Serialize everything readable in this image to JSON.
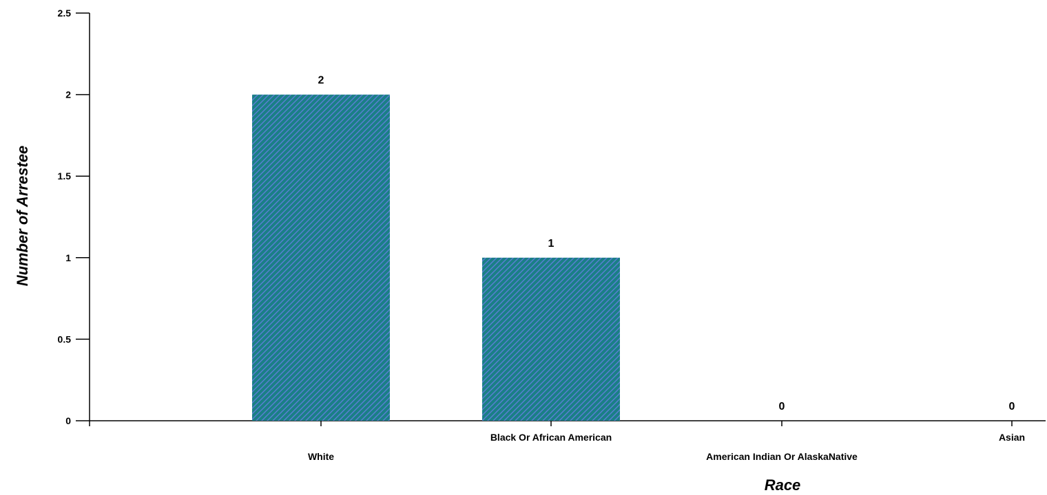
{
  "chart_data": {
    "type": "bar",
    "title": "",
    "xlabel": "Race",
    "ylabel": "Number of Arrestee",
    "categories": [
      "White",
      "Black Or African American",
      "American Indian Or AlaskaNative",
      "Asian"
    ],
    "values": [
      2,
      1,
      0,
      0
    ],
    "value_labels": [
      "2",
      "1",
      "0",
      "0"
    ],
    "ylim": [
      0,
      2.5
    ],
    "yticks": [
      0,
      0.5,
      1,
      1.5,
      2,
      2.5
    ],
    "ytick_labels": [
      "0",
      "0.5",
      "1",
      "1.5",
      "2",
      "2.5"
    ],
    "grid": false,
    "legend": "none",
    "colors": {
      "bar_fill": "#1a7f86",
      "bar_hatch": "#5b7fd6",
      "axis": "#000000"
    }
  }
}
